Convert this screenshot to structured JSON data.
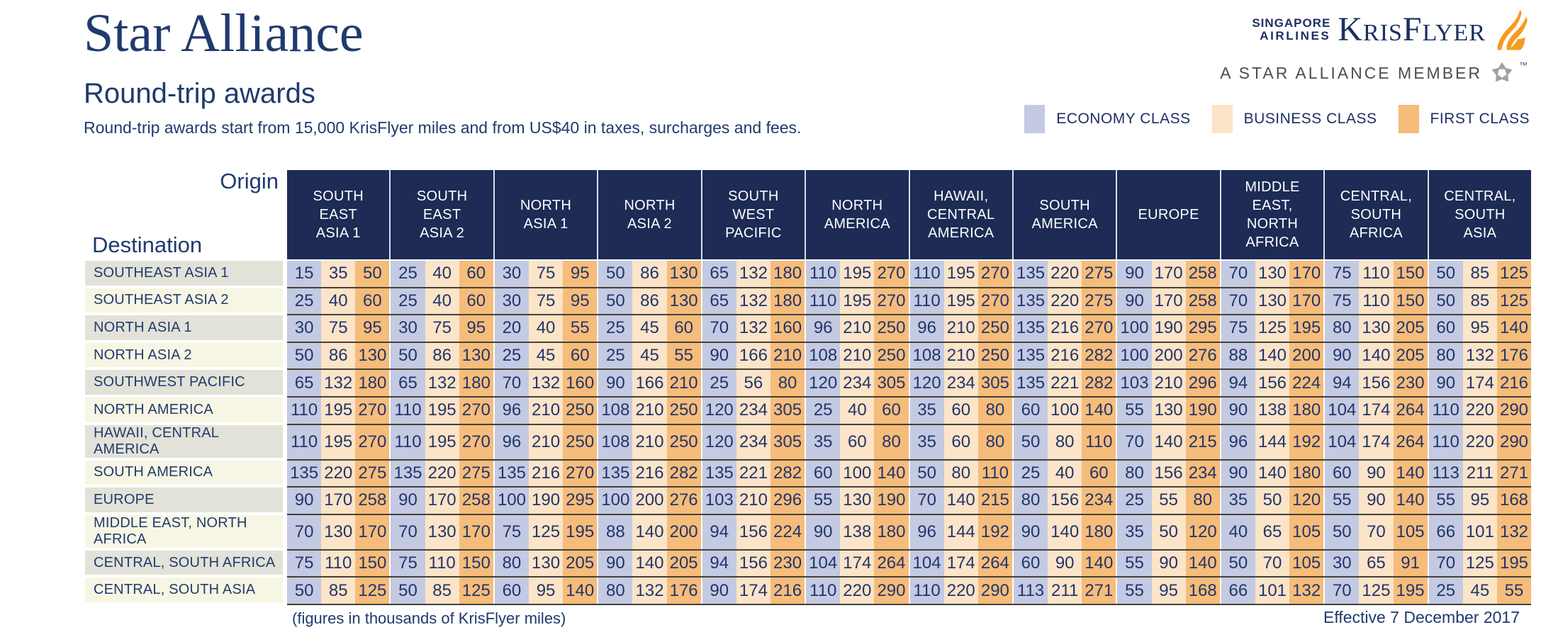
{
  "header": {
    "title": "Star Alliance",
    "subtitle": "Round-trip awards",
    "tagline": "Round-trip awards start from 15,000 KrisFlyer miles and from US$40 in taxes, surcharges and fees."
  },
  "brand": {
    "airline_line1": "SINGAPORE",
    "airline_line2": "AIRLINES",
    "program": "KrisFlyer",
    "member": "A STAR ALLIANCE MEMBER",
    "trademark": "™"
  },
  "legend": {
    "items": [
      {
        "key": "economy",
        "label": "ECONOMY CLASS"
      },
      {
        "key": "business",
        "label": "BUSINESS CLASS"
      },
      {
        "key": "first",
        "label": "FIRST CLASS"
      }
    ]
  },
  "colors": {
    "economy": "#c3cae2",
    "business": "#fce4c8",
    "first": "#f6bc7a",
    "header_bg": "#1d2b55",
    "row_label_odd": "#e2e2d8",
    "row_label_even": "#f7f6e4",
    "accent_navy": "#203a6d",
    "kris_navy": "#1c2f63",
    "separator": "#44423a",
    "brand_orange": "#F59B20",
    "star_grey": "#9fa1a4",
    "member_grey": "#4d4d4f"
  },
  "table": {
    "origin_label": "Origin",
    "destination_label": "Destination",
    "origins": [
      "SOUTH\nEAST\nASIA 1",
      "SOUTH\nEAST\nASIA 2",
      "NORTH\nASIA 1",
      "NORTH\nASIA 2",
      "SOUTH\nWEST\nPACIFIC",
      "NORTH\nAMERICA",
      "HAWAII,\nCENTRAL\nAMERICA",
      "SOUTH\nAMERICA",
      "EUROPE",
      "MIDDLE\nEAST,\nNORTH\nAFRICA",
      "CENTRAL,\nSOUTH\nAFRICA",
      "CENTRAL,\nSOUTH\nASIA"
    ],
    "class_order": [
      "economy",
      "business",
      "first"
    ],
    "destinations": [
      {
        "label": "SOUTHEAST ASIA 1",
        "cells": [
          [
            15,
            35,
            50
          ],
          [
            25,
            40,
            60
          ],
          [
            30,
            75,
            95
          ],
          [
            50,
            86,
            130
          ],
          [
            65,
            132,
            180
          ],
          [
            110,
            195,
            270
          ],
          [
            110,
            195,
            270
          ],
          [
            135,
            220,
            275
          ],
          [
            90,
            170,
            258
          ],
          [
            70,
            130,
            170
          ],
          [
            75,
            110,
            150
          ],
          [
            50,
            85,
            125
          ]
        ]
      },
      {
        "label": "SOUTHEAST ASIA 2",
        "cells": [
          [
            25,
            40,
            60
          ],
          [
            25,
            40,
            60
          ],
          [
            30,
            75,
            95
          ],
          [
            50,
            86,
            130
          ],
          [
            65,
            132,
            180
          ],
          [
            110,
            195,
            270
          ],
          [
            110,
            195,
            270
          ],
          [
            135,
            220,
            275
          ],
          [
            90,
            170,
            258
          ],
          [
            70,
            130,
            170
          ],
          [
            75,
            110,
            150
          ],
          [
            50,
            85,
            125
          ]
        ]
      },
      {
        "label": "NORTH ASIA 1",
        "cells": [
          [
            30,
            75,
            95
          ],
          [
            30,
            75,
            95
          ],
          [
            20,
            40,
            55
          ],
          [
            25,
            45,
            60
          ],
          [
            70,
            132,
            160
          ],
          [
            96,
            210,
            250
          ],
          [
            96,
            210,
            250
          ],
          [
            135,
            216,
            270
          ],
          [
            100,
            190,
            295
          ],
          [
            75,
            125,
            195
          ],
          [
            80,
            130,
            205
          ],
          [
            60,
            95,
            140
          ]
        ]
      },
      {
        "label": "NORTH ASIA 2",
        "cells": [
          [
            50,
            86,
            130
          ],
          [
            50,
            86,
            130
          ],
          [
            25,
            45,
            60
          ],
          [
            25,
            45,
            55
          ],
          [
            90,
            166,
            210
          ],
          [
            108,
            210,
            250
          ],
          [
            108,
            210,
            250
          ],
          [
            135,
            216,
            282
          ],
          [
            100,
            200,
            276
          ],
          [
            88,
            140,
            200
          ],
          [
            90,
            140,
            205
          ],
          [
            80,
            132,
            176
          ]
        ]
      },
      {
        "label": "SOUTHWEST PACIFIC",
        "cells": [
          [
            65,
            132,
            180
          ],
          [
            65,
            132,
            180
          ],
          [
            70,
            132,
            160
          ],
          [
            90,
            166,
            210
          ],
          [
            25,
            56,
            80
          ],
          [
            120,
            234,
            305
          ],
          [
            120,
            234,
            305
          ],
          [
            135,
            221,
            282
          ],
          [
            103,
            210,
            296
          ],
          [
            94,
            156,
            224
          ],
          [
            94,
            156,
            230
          ],
          [
            90,
            174,
            216
          ]
        ]
      },
      {
        "label": "NORTH AMERICA",
        "cells": [
          [
            110,
            195,
            270
          ],
          [
            110,
            195,
            270
          ],
          [
            96,
            210,
            250
          ],
          [
            108,
            210,
            250
          ],
          [
            120,
            234,
            305
          ],
          [
            25,
            40,
            60
          ],
          [
            35,
            60,
            80
          ],
          [
            60,
            100,
            140
          ],
          [
            55,
            130,
            190
          ],
          [
            90,
            138,
            180
          ],
          [
            104,
            174,
            264
          ],
          [
            110,
            220,
            290
          ]
        ]
      },
      {
        "label": "HAWAII, CENTRAL AMERICA",
        "cells": [
          [
            110,
            195,
            270
          ],
          [
            110,
            195,
            270
          ],
          [
            96,
            210,
            250
          ],
          [
            108,
            210,
            250
          ],
          [
            120,
            234,
            305
          ],
          [
            35,
            60,
            80
          ],
          [
            35,
            60,
            80
          ],
          [
            50,
            80,
            110
          ],
          [
            70,
            140,
            215
          ],
          [
            96,
            144,
            192
          ],
          [
            104,
            174,
            264
          ],
          [
            110,
            220,
            290
          ]
        ]
      },
      {
        "label": "SOUTH AMERICA",
        "cells": [
          [
            135,
            220,
            275
          ],
          [
            135,
            220,
            275
          ],
          [
            135,
            216,
            270
          ],
          [
            135,
            216,
            282
          ],
          [
            135,
            221,
            282
          ],
          [
            60,
            100,
            140
          ],
          [
            50,
            80,
            110
          ],
          [
            25,
            40,
            60
          ],
          [
            80,
            156,
            234
          ],
          [
            90,
            140,
            180
          ],
          [
            60,
            90,
            140
          ],
          [
            113,
            211,
            271
          ]
        ]
      },
      {
        "label": "EUROPE",
        "cells": [
          [
            90,
            170,
            258
          ],
          [
            90,
            170,
            258
          ],
          [
            100,
            190,
            295
          ],
          [
            100,
            200,
            276
          ],
          [
            103,
            210,
            296
          ],
          [
            55,
            130,
            190
          ],
          [
            70,
            140,
            215
          ],
          [
            80,
            156,
            234
          ],
          [
            25,
            55,
            80
          ],
          [
            35,
            50,
            120
          ],
          [
            55,
            90,
            140
          ],
          [
            55,
            95,
            168
          ]
        ]
      },
      {
        "label": "MIDDLE EAST, NORTH AFRICA",
        "cells": [
          [
            70,
            130,
            170
          ],
          [
            70,
            130,
            170
          ],
          [
            75,
            125,
            195
          ],
          [
            88,
            140,
            200
          ],
          [
            94,
            156,
            224
          ],
          [
            90,
            138,
            180
          ],
          [
            96,
            144,
            192
          ],
          [
            90,
            140,
            180
          ],
          [
            35,
            50,
            120
          ],
          [
            40,
            65,
            105
          ],
          [
            50,
            70,
            105
          ],
          [
            66,
            101,
            132
          ]
        ]
      },
      {
        "label": "CENTRAL, SOUTH AFRICA",
        "cells": [
          [
            75,
            110,
            150
          ],
          [
            75,
            110,
            150
          ],
          [
            80,
            130,
            205
          ],
          [
            90,
            140,
            205
          ],
          [
            94,
            156,
            230
          ],
          [
            104,
            174,
            264
          ],
          [
            104,
            174,
            264
          ],
          [
            60,
            90,
            140
          ],
          [
            55,
            90,
            140
          ],
          [
            50,
            70,
            105
          ],
          [
            30,
            65,
            91
          ],
          [
            70,
            125,
            195
          ]
        ]
      },
      {
        "label": "CENTRAL, SOUTH ASIA",
        "cells": [
          [
            50,
            85,
            125
          ],
          [
            50,
            85,
            125
          ],
          [
            60,
            95,
            140
          ],
          [
            80,
            132,
            176
          ],
          [
            90,
            174,
            216
          ],
          [
            110,
            220,
            290
          ],
          [
            110,
            220,
            290
          ],
          [
            113,
            211,
            271
          ],
          [
            55,
            95,
            168
          ],
          [
            66,
            101,
            132
          ],
          [
            70,
            125,
            195
          ],
          [
            25,
            45,
            55
          ]
        ]
      }
    ]
  },
  "footer": {
    "note": "(figures in thousands of KrisFlyer miles)",
    "effective": "Effective 7 December 2017"
  }
}
